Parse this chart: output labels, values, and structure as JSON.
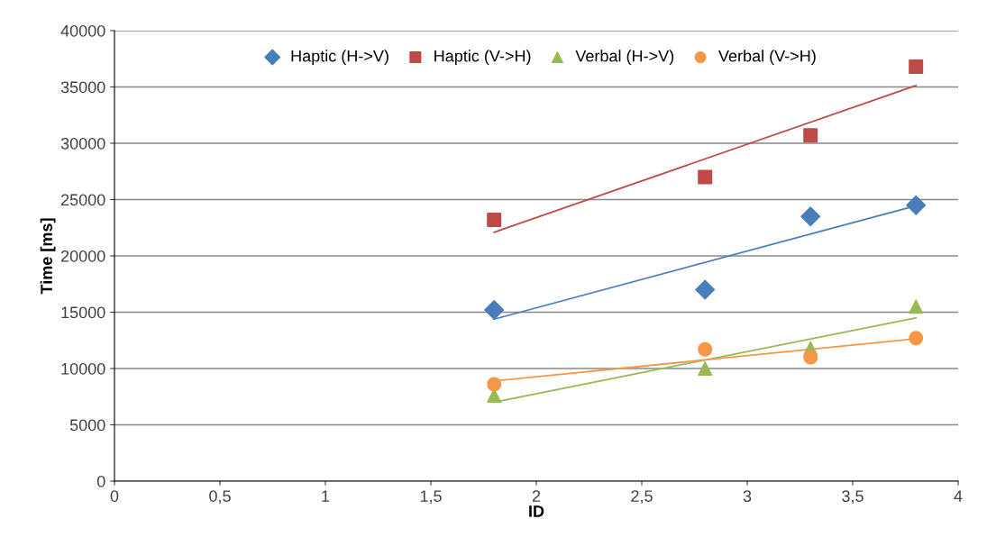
{
  "chart_data": {
    "type": "scatter",
    "xlabel": "ID",
    "ylabel": "Time [ms]",
    "xlim": [
      0,
      4
    ],
    "xticks": [
      0,
      {
        "value": 0.5,
        "label": "0,5"
      },
      1,
      {
        "value": 1.5,
        "label": "1,5"
      },
      2,
      {
        "value": 2.5,
        "label": "2,5"
      },
      3,
      {
        "value": 3.5,
        "label": "3,5"
      },
      4
    ],
    "ylim": [
      0,
      40000
    ],
    "yticks": [
      0,
      5000,
      10000,
      15000,
      20000,
      25000,
      30000,
      35000,
      40000
    ],
    "grid": "y",
    "legend": "top",
    "series": [
      {
        "name": "Haptic (H->V)",
        "color": "#4a7ebb",
        "marker": "diamond",
        "x": [
          1.8,
          2.8,
          3.3,
          3.8
        ],
        "values": [
          15200,
          17000,
          23500,
          24500
        ]
      },
      {
        "name": "Haptic (V->H)",
        "color": "#be4b48",
        "marker": "square",
        "x": [
          1.8,
          2.8,
          3.3,
          3.8
        ],
        "values": [
          23200,
          27000,
          30700,
          36800
        ]
      },
      {
        "name": "Verbal (H->V)",
        "color": "#98b954",
        "marker": "triangle",
        "x": [
          1.8,
          2.8,
          3.3,
          3.8
        ],
        "values": [
          7600,
          10000,
          11800,
          15500
        ]
      },
      {
        "name": "Verbal (V->H)",
        "color": "#f79646",
        "marker": "circle",
        "x": [
          1.8,
          2.8,
          3.3,
          3.8
        ],
        "values": [
          8600,
          11700,
          11000,
          12700
        ]
      },
      {
        "type": "line",
        "color": "#4a7ebb",
        "x": [
          1.8,
          3.8
        ],
        "values": [
          14380,
          24460
        ]
      },
      {
        "type": "line",
        "color": "#be4b48",
        "x": [
          1.8,
          3.8
        ],
        "values": [
          22100,
          35120
        ]
      },
      {
        "type": "line",
        "color": "#98b954",
        "x": [
          1.8,
          3.8
        ],
        "values": [
          7010,
          14500
        ]
      },
      {
        "type": "line",
        "color": "#f79646",
        "x": [
          1.8,
          3.8
        ],
        "values": [
          8890,
          12640
        ]
      }
    ]
  }
}
